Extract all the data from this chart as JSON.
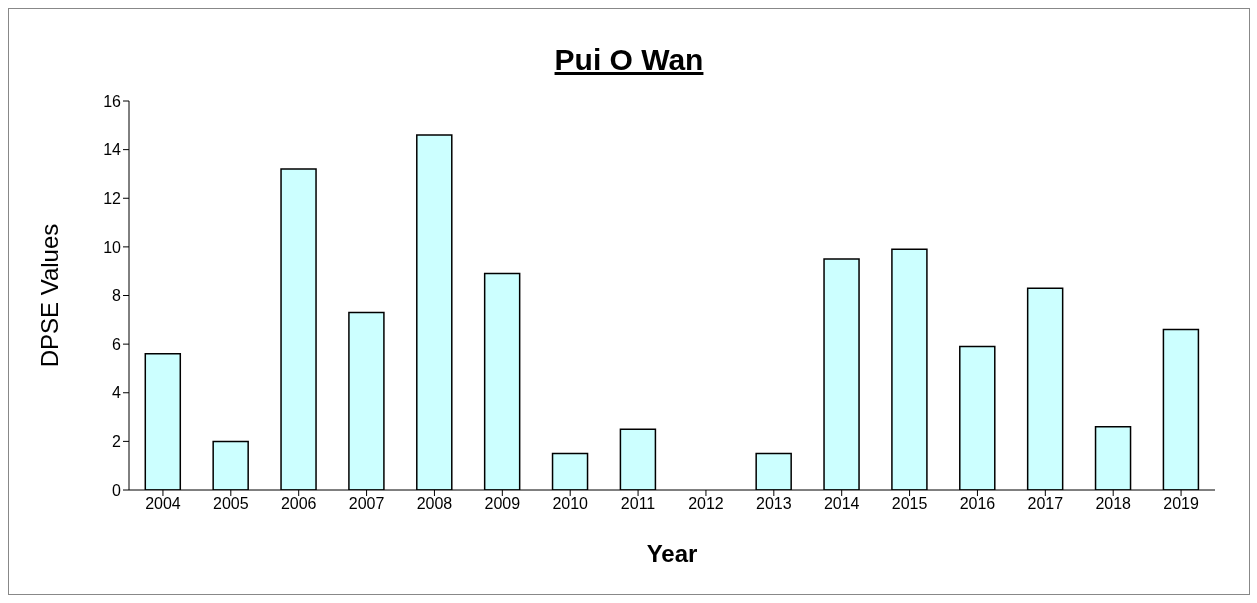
{
  "chart_data": {
    "type": "bar",
    "title": "Pui O Wan",
    "xlabel": "Year",
    "ylabel": "DPSE Values",
    "categories": [
      "2004",
      "2005",
      "2006",
      "2007",
      "2008",
      "2009",
      "2010",
      "2011",
      "2012",
      "2013",
      "2014",
      "2015",
      "2016",
      "2017",
      "2018",
      "2019"
    ],
    "values": [
      5.6,
      2.0,
      13.2,
      7.3,
      14.6,
      8.9,
      1.5,
      2.5,
      0,
      1.5,
      9.5,
      9.9,
      5.9,
      8.3,
      2.6,
      6.6
    ],
    "color": "#ccffff",
    "ylim": [
      0,
      16
    ],
    "yticks": [
      0,
      2,
      4,
      6,
      8,
      10,
      12,
      14,
      16
    ]
  }
}
